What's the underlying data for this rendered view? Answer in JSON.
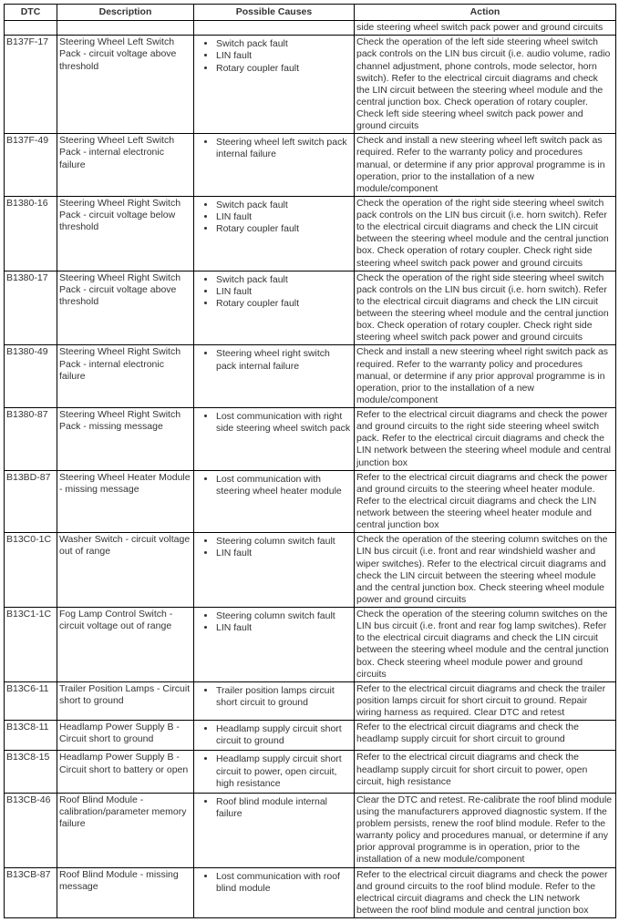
{
  "table": {
    "headers": {
      "dtc": "DTC",
      "description": "Description",
      "causes": "Possible Causes",
      "action": "Action"
    },
    "rows": [
      {
        "dtc": "",
        "description": "",
        "causes": [],
        "action": "side steering wheel switch pack power and ground circuits"
      },
      {
        "dtc": "B137F-17",
        "description": "Steering Wheel Left Switch Pack - circuit voltage above threshold",
        "causes": [
          "Switch pack fault",
          "LIN fault",
          "Rotary coupler fault"
        ],
        "action": "Check the operation of the left side steering wheel switch pack controls on the LIN bus circuit (i.e. audio volume, radio channel adjustment, phone controls, mode selector, horn switch). Refer to the electrical circuit diagrams and check the LIN circuit between the steering wheel module and the central junction box. Check operation of rotary coupler. Check left side steering wheel switch pack power and ground circuits"
      },
      {
        "dtc": "B137F-49",
        "description": "Steering Wheel Left Switch Pack - internal electronic failure",
        "causes": [
          "Steering wheel left switch pack internal failure"
        ],
        "action": "Check and install a new steering wheel left switch pack as required. Refer to the warranty policy and procedures manual, or determine if any prior approval programme is in operation, prior to the installation of a new module/component"
      },
      {
        "dtc": "B1380-16",
        "description": "Steering Wheel Right Switch Pack - circuit voltage below threshold",
        "causes": [
          "Switch pack fault",
          "LIN fault",
          "Rotary coupler fault"
        ],
        "action": "Check the operation of the right side steering wheel switch pack controls on the LIN bus circuit (i.e. horn switch). Refer to the electrical circuit diagrams and check the LIN circuit between the steering wheel module and the central junction box. Check operation of rotary coupler. Check right side steering wheel switch pack power and ground circuits"
      },
      {
        "dtc": "B1380-17",
        "description": "Steering Wheel Right Switch Pack - circuit voltage above threshold",
        "causes": [
          "Switch pack fault",
          "LIN fault",
          "Rotary coupler fault"
        ],
        "action": "Check the operation of the right side steering wheel switch pack controls on the LIN bus circuit (i.e. horn switch). Refer to the electrical circuit diagrams and check the LIN circuit between the steering wheel module and the central junction box. Check operation of rotary coupler. Check right side steering wheel switch pack power and ground circuits"
      },
      {
        "dtc": "B1380-49",
        "description": "Steering Wheel Right Switch Pack - internal electronic failure",
        "causes": [
          "Steering wheel right switch pack internal failure"
        ],
        "action": "Check and install a new steering wheel right switch pack as required. Refer to the warranty policy and procedures manual, or determine if any prior approval programme is in operation, prior to the installation of a new module/component"
      },
      {
        "dtc": "B1380-87",
        "description": "Steering Wheel Right Switch Pack - missing message",
        "causes": [
          "Lost communication with right side steering wheel switch pack"
        ],
        "action": "Refer to the electrical circuit diagrams and check the power and ground circuits to the right side steering wheel switch pack. Refer to the electrical circuit diagrams and check the LIN network between the steering wheel module and central junction box"
      },
      {
        "dtc": "B13BD-87",
        "description": "Steering Wheel Heater Module - missing message",
        "causes": [
          "Lost communication with steering wheel heater module"
        ],
        "action": "Refer to the electrical circuit diagrams and check the power and ground circuits to the steering wheel heater module. Refer to the electrical circuit diagrams and check the LIN network between the steering wheel heater module and central junction box"
      },
      {
        "dtc": "B13C0-1C",
        "description": "Washer Switch - circuit voltage out of range",
        "causes": [
          "Steering column switch fault",
          "LIN fault"
        ],
        "action": "Check the operation of the steering column switches on the LIN bus circuit (i.e. front and rear windshield washer and wiper switches). Refer to the electrical circuit diagrams and check the LIN circuit between the steering wheel module and the central junction box. Check steering wheel module power and ground circuits"
      },
      {
        "dtc": "B13C1-1C",
        "description": "Fog Lamp Control Switch - circuit voltage out of range",
        "causes": [
          "Steering column switch fault",
          "LIN fault"
        ],
        "action": "Check the operation of the steering column switches on the LIN bus circuit (i.e. front and rear fog lamp switches). Refer to the electrical circuit diagrams and check the LIN circuit between the steering wheel module and the central junction box. Check steering wheel module power and ground circuits"
      },
      {
        "dtc": "B13C6-11",
        "description": "Trailer Position Lamps - Circuit short to ground",
        "causes": [
          "Trailer position lamps circuit short circuit to ground"
        ],
        "action": "Refer to the electrical circuit diagrams and check the trailer position lamps circuit for short circuit to ground. Repair wiring harness as required. Clear DTC and retest"
      },
      {
        "dtc": "B13C8-11",
        "description": "Headlamp Power Supply B - Circuit short to ground",
        "causes": [
          "Headlamp supply circuit short circuit to ground"
        ],
        "action": "Refer to the electrical circuit diagrams and check the headlamp supply circuit for short circuit to ground"
      },
      {
        "dtc": "B13C8-15",
        "description": "Headlamp Power Supply B - Circuit short to battery or open",
        "causes": [
          "Headlamp supply circuit short circuit to power, open circuit, high resistance"
        ],
        "action": "Refer to the electrical circuit diagrams and check the headlamp supply circuit for short circuit to power, open circuit, high resistance"
      },
      {
        "dtc": "B13CB-46",
        "description": "Roof Blind Module - calibration/parameter memory failure",
        "causes": [
          "Roof blind module internal failure"
        ],
        "action": "Clear the DTC and retest. Re-calibrate the roof blind module using the manufacturers approved diagnostic system. If the problem persists, renew the roof blind module. Refer to the warranty policy and procedures manual, or determine if any prior approval programme is in operation, prior to the installation of a new module/component"
      },
      {
        "dtc": "B13CB-87",
        "description": "Roof Blind Module - missing message",
        "causes": [
          "Lost communication with roof blind module"
        ],
        "action": "Refer to the electrical circuit diagrams and check the power and ground circuits to the roof blind module. Refer to the electrical circuit diagrams and check the LIN network between the roof blind module and central junction box"
      }
    ]
  }
}
